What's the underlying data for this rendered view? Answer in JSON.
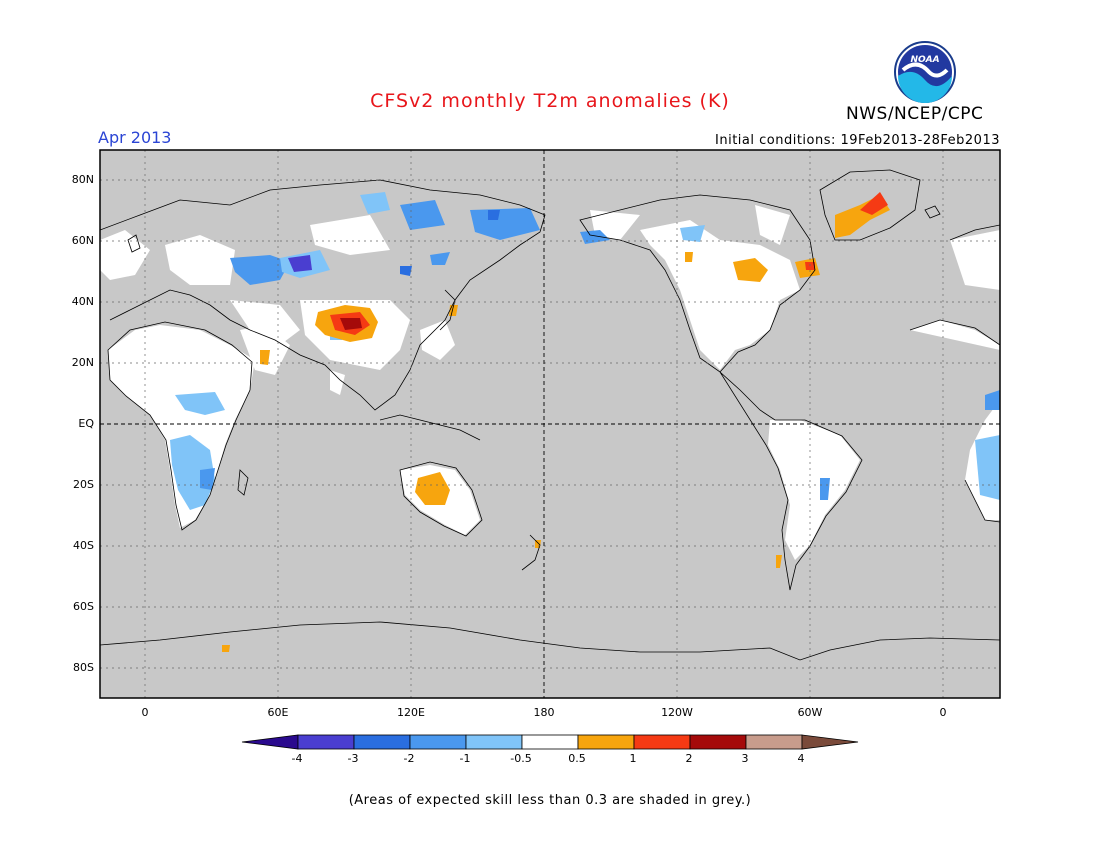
{
  "header": {
    "title": "CFSv2 monthly T2m anomalies (K)",
    "agency": "NWS/NCEP/CPC",
    "month": "Apr 2013",
    "initial_conditions": "Initial conditions: 19Feb2013-28Feb2013",
    "logo_text": "NOAA"
  },
  "axes": {
    "lat_labels": [
      "80N",
      "60N",
      "40N",
      "20N",
      "EQ",
      "20S",
      "40S",
      "60S",
      "80S"
    ],
    "lon_labels": [
      "0",
      "60E",
      "120E",
      "180",
      "120W",
      "60W",
      "0"
    ]
  },
  "colorbar": {
    "ticks": [
      "-4",
      "-3",
      "-2",
      "-1",
      "-0.5",
      "0.5",
      "1",
      "2",
      "3",
      "4"
    ],
    "colors": [
      "#2a0a8e",
      "#4a3ed0",
      "#2a6ee0",
      "#4a98ee",
      "#80c4f8",
      "#ffffff",
      "#f7a50e",
      "#f53a14",
      "#a50a0a",
      "#c89c8c",
      "#7a4a3a"
    ]
  },
  "footnote": "(Areas of expected skill less than 0.3 are shaded in grey.)",
  "colors": {
    "title": "#e8161b",
    "month": "#2b45d4",
    "skill_mask": "#c8c8c8",
    "land_no_skill": "#ffffff"
  }
}
